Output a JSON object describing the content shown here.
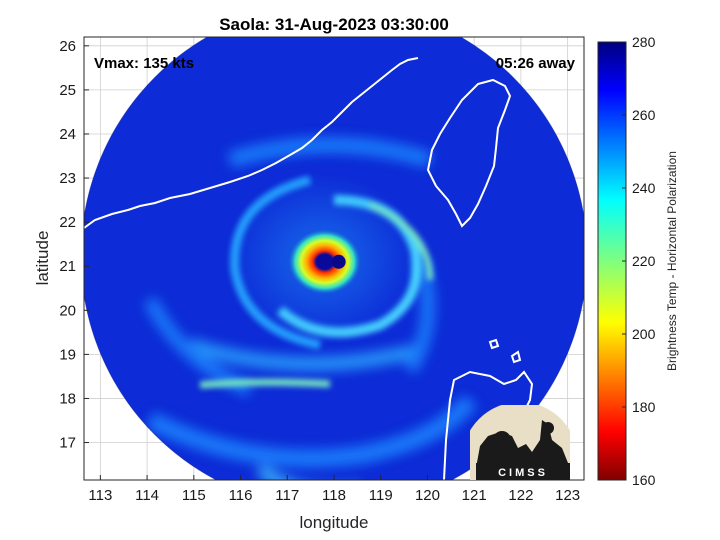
{
  "figure": {
    "title": "Saola: 31-Aug-2023 03:30:00",
    "xlabel": "longitude",
    "ylabel": "latitude",
    "vmax_label": "Vmax: 135 kts",
    "time_label": "05:26 away",
    "logo_text": "CIMSS"
  },
  "chart_data": {
    "type": "heatmap",
    "title": "Saola: 31-Aug-2023 03:30:00",
    "xlabel": "longitude",
    "ylabel": "latitude",
    "xlim": [
      112.65,
      123.35
    ],
    "ylim": [
      16.15,
      26.2
    ],
    "x_ticks": [
      113,
      114,
      115,
      116,
      117,
      118,
      119,
      120,
      121,
      122,
      123
    ],
    "y_ticks": [
      17,
      18,
      19,
      20,
      21,
      22,
      23,
      24,
      25,
      26
    ],
    "grid": true,
    "storm_center": {
      "lon": 118.1,
      "lat": 21.1
    },
    "colorbar": {
      "label": "Brightness Temp - Horizontal Polarization",
      "range": [
        160,
        280
      ],
      "ticks": [
        160,
        180,
        200,
        220,
        240,
        260,
        280
      ],
      "colormap": "jet"
    }
  },
  "colors": {
    "background_swath": "#0d2bd6",
    "coastline": "#ffffff",
    "grid": "#cfcfcf",
    "logo_bg": "#e9dfc6",
    "logo_dark": "#1a1a1a"
  }
}
